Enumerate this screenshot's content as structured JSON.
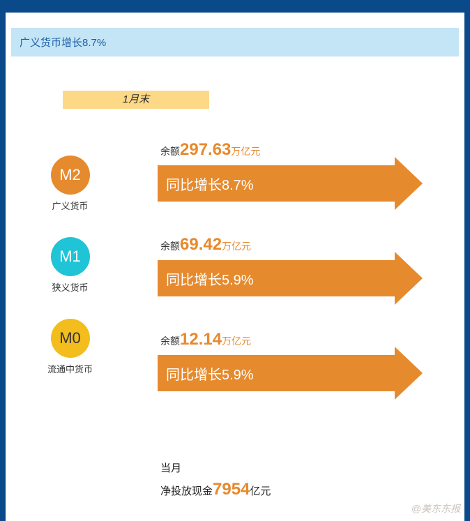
{
  "colors": {
    "frame": "#0a4a8a",
    "header_bg": "#c3e5f5",
    "header_text": "#1e5fa8",
    "chip_bg": "#fdd987",
    "chip_text": "#2c2c2c",
    "arrow": "#e68a2e",
    "arrow_text": "#ffffff",
    "value_text": "#e68a2e",
    "watermark": "#c9c4bc"
  },
  "header": {
    "title": "广义货币增长8.7%"
  },
  "period": {
    "label": "1月末"
  },
  "legend": [
    {
      "code": "M2",
      "label": "广义货币",
      "circle_color": "#e68a2e",
      "text_color": "#ffffff"
    },
    {
      "code": "M1",
      "label": "狭义货币",
      "circle_color": "#1fc4d6",
      "text_color": "#ffffff"
    },
    {
      "code": "M0",
      "label": "流通中货币",
      "circle_color": "#f2bd1d",
      "text_color": "#333333"
    }
  ],
  "rows": [
    {
      "balance_prefix": "余额",
      "balance_value": "297.63",
      "balance_unit": "万亿元",
      "growth_text": "同比增长8.7%"
    },
    {
      "balance_prefix": "余额",
      "balance_value": "69.42",
      "balance_unit": "万亿元",
      "growth_text": "同比增长5.9%"
    },
    {
      "balance_prefix": "余额",
      "balance_value": "12.14",
      "balance_unit": "万亿元",
      "growth_text": "同比增长5.9%"
    }
  ],
  "footer": {
    "line1": "当月",
    "line2_prefix": "净投放现金",
    "line2_value": "7954",
    "line2_unit": "亿元"
  },
  "watermark": "@美东东报"
}
